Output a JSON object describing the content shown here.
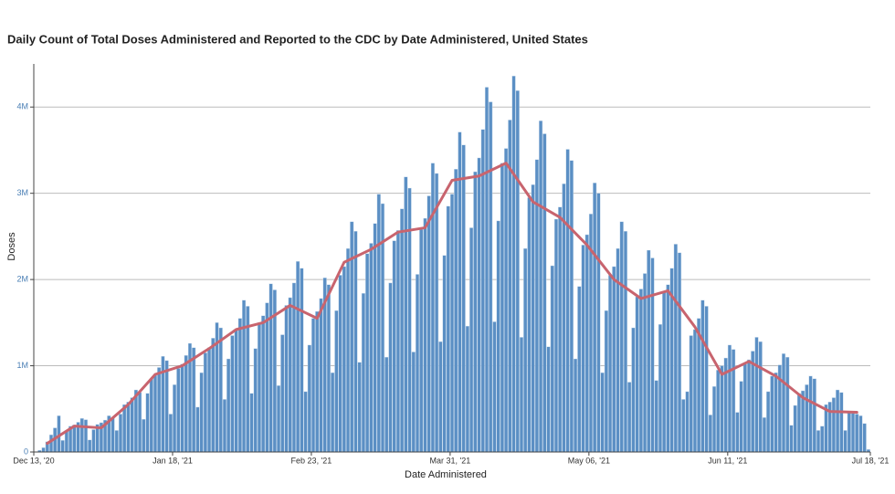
{
  "chart_data": {
    "type": "bar",
    "title": "Daily Count of Total Doses Administered and Reported to the CDC by Date Administered, United States",
    "x_label": "Date Administered",
    "y_label": "Doses",
    "x": [
      "2020-12-14",
      "2020-12-15",
      "2020-12-16",
      "2020-12-17",
      "2020-12-18",
      "2020-12-19",
      "2020-12-20",
      "2020-12-21",
      "2020-12-22",
      "2020-12-23",
      "2020-12-24",
      "2020-12-25",
      "2020-12-26",
      "2020-12-27",
      "2020-12-28",
      "2020-12-29",
      "2020-12-30",
      "2020-12-31",
      "2021-01-01",
      "2021-01-02",
      "2021-01-03",
      "2021-01-04",
      "2021-01-05",
      "2021-01-06",
      "2021-01-07",
      "2021-01-08",
      "2021-01-09",
      "2021-01-10",
      "2021-01-11",
      "2021-01-12",
      "2021-01-13",
      "2021-01-14",
      "2021-01-15",
      "2021-01-16",
      "2021-01-17",
      "2021-01-18",
      "2021-01-19",
      "2021-01-20",
      "2021-01-21",
      "2021-01-22",
      "2021-01-23",
      "2021-01-24",
      "2021-01-25",
      "2021-01-26",
      "2021-01-27",
      "2021-01-28",
      "2021-01-29",
      "2021-01-30",
      "2021-01-31",
      "2021-02-01",
      "2021-02-02",
      "2021-02-03",
      "2021-02-04",
      "2021-02-05",
      "2021-02-06",
      "2021-02-07",
      "2021-02-08",
      "2021-02-09",
      "2021-02-10",
      "2021-02-11",
      "2021-02-12",
      "2021-02-13",
      "2021-02-14",
      "2021-02-15",
      "2021-02-16",
      "2021-02-17",
      "2021-02-18",
      "2021-02-19",
      "2021-02-20",
      "2021-02-21",
      "2021-02-22",
      "2021-02-23",
      "2021-02-24",
      "2021-02-25",
      "2021-02-26",
      "2021-02-27",
      "2021-02-28",
      "2021-03-01",
      "2021-03-02",
      "2021-03-03",
      "2021-03-04",
      "2021-03-05",
      "2021-03-06",
      "2021-03-07",
      "2021-03-08",
      "2021-03-09",
      "2021-03-10",
      "2021-03-11",
      "2021-03-12",
      "2021-03-13",
      "2021-03-14",
      "2021-03-15",
      "2021-03-16",
      "2021-03-17",
      "2021-03-18",
      "2021-03-19",
      "2021-03-20",
      "2021-03-21",
      "2021-03-22",
      "2021-03-23",
      "2021-03-24",
      "2021-03-25",
      "2021-03-26",
      "2021-03-27",
      "2021-03-28",
      "2021-03-29",
      "2021-03-30",
      "2021-03-31",
      "2021-04-01",
      "2021-04-02",
      "2021-04-03",
      "2021-04-04",
      "2021-04-05",
      "2021-04-06",
      "2021-04-07",
      "2021-04-08",
      "2021-04-09",
      "2021-04-10",
      "2021-04-11",
      "2021-04-12",
      "2021-04-13",
      "2021-04-14",
      "2021-04-15",
      "2021-04-16",
      "2021-04-17",
      "2021-04-18",
      "2021-04-19",
      "2021-04-20",
      "2021-04-21",
      "2021-04-22",
      "2021-04-23",
      "2021-04-24",
      "2021-04-25",
      "2021-04-26",
      "2021-04-27",
      "2021-04-28",
      "2021-04-29",
      "2021-04-30",
      "2021-05-01",
      "2021-05-02",
      "2021-05-03",
      "2021-05-04",
      "2021-05-05",
      "2021-05-06",
      "2021-05-07",
      "2021-05-08",
      "2021-05-09",
      "2021-05-10",
      "2021-05-11",
      "2021-05-12",
      "2021-05-13",
      "2021-05-14",
      "2021-05-15",
      "2021-05-16",
      "2021-05-17",
      "2021-05-18",
      "2021-05-19",
      "2021-05-20",
      "2021-05-21",
      "2021-05-22",
      "2021-05-23",
      "2021-05-24",
      "2021-05-25",
      "2021-05-26",
      "2021-05-27",
      "2021-05-28",
      "2021-05-29",
      "2021-05-30",
      "2021-05-31",
      "2021-06-01",
      "2021-06-02",
      "2021-06-03",
      "2021-06-04",
      "2021-06-05",
      "2021-06-06",
      "2021-06-07",
      "2021-06-08",
      "2021-06-09",
      "2021-06-10",
      "2021-06-11",
      "2021-06-12",
      "2021-06-13",
      "2021-06-14",
      "2021-06-15",
      "2021-06-16",
      "2021-06-17",
      "2021-06-18",
      "2021-06-19",
      "2021-06-20",
      "2021-06-21",
      "2021-06-22",
      "2021-06-23",
      "2021-06-24",
      "2021-06-25",
      "2021-06-26",
      "2021-06-27",
      "2021-06-28",
      "2021-06-29",
      "2021-06-30",
      "2021-07-01",
      "2021-07-02",
      "2021-07-03",
      "2021-07-04",
      "2021-07-05",
      "2021-07-06",
      "2021-07-07",
      "2021-07-08",
      "2021-07-09",
      "2021-07-10",
      "2021-07-11",
      "2021-07-12",
      "2021-07-13",
      "2021-07-14",
      "2021-07-15",
      "2021-07-16",
      "2021-07-17"
    ],
    "series": [
      {
        "color": "#5b8fc4",
        "values": [
          20000,
          50000,
          120000,
          200000,
          280000,
          420000,
          135000,
          240000,
          300000,
          315000,
          345000,
          390000,
          375000,
          140000,
          260000,
          320000,
          340000,
          370000,
          420000,
          400000,
          250000,
          440000,
          550000,
          580000,
          630000,
          720000,
          690000,
          380000,
          680000,
          850000,
          890000,
          980000,
          1110000,
          1060000,
          440000,
          780000,
          970000,
          1020000,
          1120000,
          1260000,
          1210000,
          520000,
          920000,
          1150000,
          1210000,
          1320000,
          1500000,
          1440000,
          610000,
          1080000,
          1350000,
          1420000,
          1550000,
          1760000,
          1690000,
          680000,
          1200000,
          1500000,
          1580000,
          1730000,
          1950000,
          1880000,
          770000,
          1360000,
          1700000,
          1790000,
          1960000,
          2210000,
          2130000,
          700000,
          1240000,
          1550000,
          1630000,
          1780000,
          2020000,
          1940000,
          920000,
          1640000,
          2050000,
          2150000,
          2360000,
          2670000,
          2560000,
          1040000,
          1840000,
          2300000,
          2420000,
          2650000,
          2990000,
          2880000,
          1100000,
          1960000,
          2450000,
          2570000,
          2820000,
          3190000,
          3060000,
          1160000,
          2060000,
          2580000,
          2710000,
          2970000,
          3350000,
          3230000,
          1280000,
          2280000,
          2850000,
          2990000,
          3280000,
          3710000,
          3560000,
          1460000,
          2600000,
          3250000,
          3410000,
          3740000,
          4230000,
          4060000,
          1510000,
          2680000,
          3350000,
          3520000,
          3850000,
          4360000,
          4190000,
          1330000,
          2360000,
          2950000,
          3100000,
          3390000,
          3840000,
          3690000,
          1220000,
          2160000,
          2700000,
          2840000,
          3110000,
          3510000,
          3380000,
          1080000,
          1920000,
          2400000,
          2520000,
          2760000,
          3120000,
          3000000,
          920000,
          1640000,
          2050000,
          2150000,
          2360000,
          2670000,
          2560000,
          810000,
          1440000,
          1800000,
          1890000,
          2070000,
          2340000,
          2250000,
          830000,
          1480000,
          1850000,
          1940000,
          2130000,
          2410000,
          2310000,
          610000,
          700000,
          1350000,
          1420000,
          1550000,
          1760000,
          1690000,
          430000,
          760000,
          950000,
          1000000,
          1090000,
          1240000,
          1190000,
          460000,
          820000,
          1020000,
          1070000,
          1170000,
          1330000,
          1280000,
          400000,
          700000,
          880000,
          920000,
          1010000,
          1140000,
          1100000,
          310000,
          540000,
          680000,
          710000,
          780000,
          880000,
          850000,
          250000,
          300000,
          550000,
          580000,
          630000,
          720000,
          690000,
          250000,
          460000,
          450000,
          440000,
          420000,
          330000,
          30000
        ]
      },
      {
        "type": "line",
        "color": "#c8646e",
        "x": [
          "2020-12-16",
          "2020-12-23",
          "2020-12-30",
          "2021-01-06",
          "2021-01-13",
          "2021-01-20",
          "2021-01-27",
          "2021-02-03",
          "2021-02-10",
          "2021-02-17",
          "2021-02-24",
          "2021-03-03",
          "2021-03-10",
          "2021-03-17",
          "2021-03-24",
          "2021-03-31",
          "2021-04-07",
          "2021-04-14",
          "2021-04-21",
          "2021-04-28",
          "2021-05-05",
          "2021-05-12",
          "2021-05-19",
          "2021-05-26",
          "2021-06-02",
          "2021-06-09",
          "2021-06-16",
          "2021-06-23",
          "2021-06-30",
          "2021-07-07",
          "2021-07-14"
        ],
        "values": [
          100000,
          300000,
          280000,
          550000,
          900000,
          1000000,
          1200000,
          1420000,
          1500000,
          1700000,
          1550000,
          2200000,
          2350000,
          2550000,
          2600000,
          3150000,
          3200000,
          3350000,
          2900000,
          2720000,
          2400000,
          2000000,
          1780000,
          1870000,
          1450000,
          900000,
          1050000,
          880000,
          630000,
          470000,
          460000
        ]
      }
    ],
    "xlim": [
      "2020-12-13",
      "2021-07-18"
    ],
    "xticks": [
      {
        "value": "2020-12-13",
        "label": "Dec 13, '20"
      },
      {
        "value": "2021-01-18",
        "label": "Jan 18, '21"
      },
      {
        "value": "2021-02-23",
        "label": "Feb 23, '21"
      },
      {
        "value": "2021-03-31",
        "label": "Mar 31, '21"
      },
      {
        "value": "2021-05-06",
        "label": "May 06, '21"
      },
      {
        "value": "2021-06-11",
        "label": "Jun 11, '21"
      },
      {
        "value": "2021-07-18",
        "label": "Jul 18, '21"
      }
    ],
    "ylim": [
      0,
      4500000
    ],
    "yticks": [
      0,
      {
        "value": 1000000,
        "label": "1M"
      },
      {
        "value": 2000000,
        "label": "2M"
      },
      {
        "value": 3000000,
        "label": "3M"
      },
      {
        "value": 4000000,
        "label": "4M"
      }
    ],
    "grid": true
  }
}
